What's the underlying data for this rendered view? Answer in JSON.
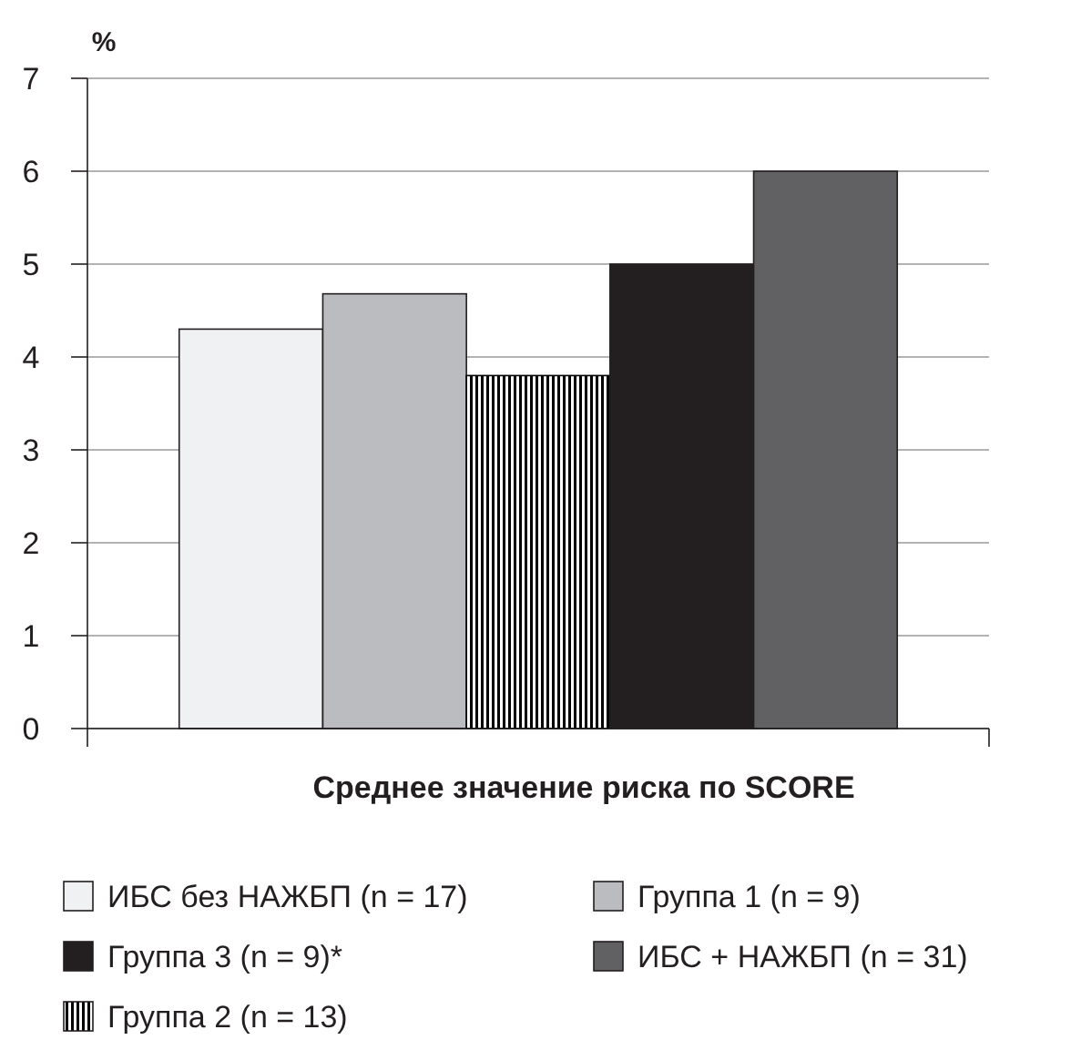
{
  "chart_data": {
    "type": "bar",
    "xlabel": "Среднее значение риска по SCORE",
    "ylabel": "%",
    "categories": [
      null
    ],
    "series": [
      {
        "name": "ИБС без НАЖБП (n = 17)",
        "color": "#f0f1f3",
        "values": [
          4.3
        ]
      },
      {
        "name": "Группа 1 (n = 9)",
        "color": "#bbbcc0",
        "values": [
          4.68
        ]
      },
      {
        "name": "Группа 2 (n = 13)",
        "color": "#000000",
        "values": [
          3.8
        ]
      },
      {
        "name": "Группа 3 (n = 9)*",
        "color": "#231f20",
        "values": [
          5.0
        ]
      },
      {
        "name": "ИБС + НАЖБП (n = 31)",
        "color": "#616062",
        "values": [
          6.0
        ]
      }
    ],
    "ylim": [
      0,
      7
    ],
    "yticks": [
      0,
      1,
      2,
      3,
      4,
      5,
      6,
      7
    ],
    "grid": "y",
    "legend": "bottom"
  }
}
